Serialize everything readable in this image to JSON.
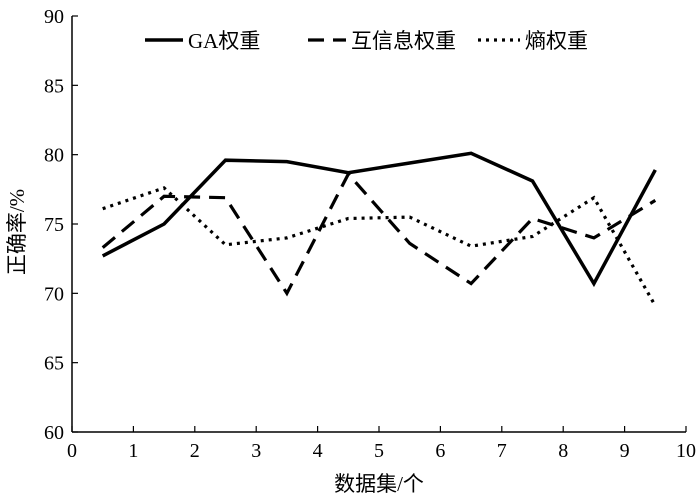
{
  "chart_data": {
    "type": "line",
    "xlabel": "数据集/个",
    "ylabel": "正确率/%",
    "xlim": [
      0,
      10
    ],
    "ylim": [
      60,
      90
    ],
    "xticks": [
      "0",
      "1",
      "2",
      "3",
      "4",
      "5",
      "6",
      "7",
      "8",
      "9",
      "10"
    ],
    "yticks": [
      "60",
      "65",
      "70",
      "75",
      "80",
      "85",
      "90"
    ],
    "grid": false,
    "legend_position": "top",
    "x": [
      0.5,
      1.5,
      2.5,
      3.5,
      4.5,
      5.5,
      6.5,
      7.5,
      8.5,
      9.5
    ],
    "series": [
      {
        "name": "GA权重",
        "style": "solid",
        "color": "#000000",
        "values": [
          72.7,
          75.0,
          79.6,
          79.5,
          78.7,
          79.4,
          80.1,
          78.1,
          70.7,
          78.9
        ]
      },
      {
        "name": "互信息权重",
        "style": "dashed",
        "color": "#000000",
        "values": [
          73.3,
          77.0,
          76.9,
          70.0,
          78.6,
          73.6,
          70.7,
          75.4,
          74.0,
          76.7
        ]
      },
      {
        "name": "熵权重",
        "style": "dotted",
        "color": "#000000",
        "values": [
          76.1,
          77.6,
          73.5,
          74.0,
          75.4,
          75.5,
          73.4,
          74.1,
          76.9,
          69.1
        ]
      }
    ]
  }
}
